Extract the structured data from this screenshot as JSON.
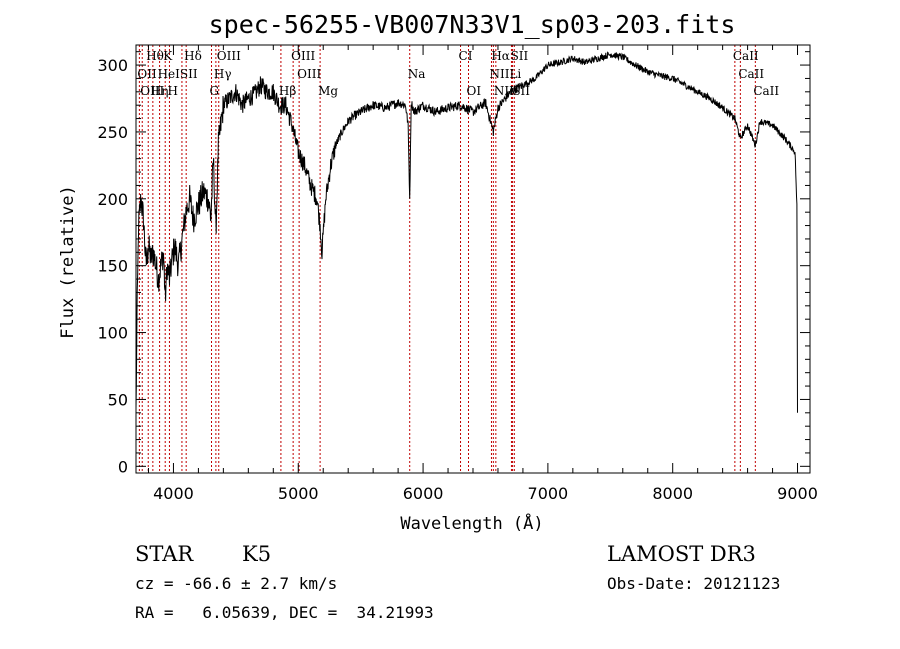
{
  "chart_data": {
    "type": "line",
    "title": "spec-56255-VB007N33V1_sp03-203.fits",
    "xlabel": "Wavelength (Å)",
    "ylabel": "Flux (relative)",
    "xlim": [
      3700,
      9100
    ],
    "ylim": [
      -5,
      315
    ],
    "xticks": [
      4000,
      5000,
      6000,
      7000,
      8000,
      9000
    ],
    "yticks": [
      0,
      50,
      100,
      150,
      200,
      250,
      300
    ],
    "grid": false,
    "series": [
      {
        "name": "flux",
        "x": [
          3700,
          3710,
          3720,
          3740,
          3760,
          3780,
          3800,
          3820,
          3840,
          3860,
          3880,
          3900,
          3920,
          3934,
          3950,
          3968,
          3990,
          4010,
          4040,
          4070,
          4100,
          4130,
          4160,
          4200,
          4240,
          4280,
          4300,
          4320,
          4340,
          4360,
          4380,
          4400,
          4450,
          4500,
          4550,
          4600,
          4650,
          4700,
          4750,
          4800,
          4850,
          4900,
          4950,
          5000,
          5050,
          5100,
          5150,
          5175,
          5190,
          5220,
          5260,
          5300,
          5350,
          5400,
          5450,
          5500,
          5600,
          5700,
          5800,
          5860,
          5880,
          5893,
          5905,
          5930,
          6000,
          6100,
          6200,
          6300,
          6400,
          6500,
          6563,
          6600,
          6700,
          6800,
          6900,
          7000,
          7100,
          7200,
          7300,
          7400,
          7500,
          7600,
          7700,
          7800,
          7900,
          8000,
          8100,
          8200,
          8300,
          8400,
          8498,
          8542,
          8600,
          8662,
          8700,
          8800,
          8900,
          8980,
          8995,
          9000
        ],
        "values": [
          40,
          120,
          180,
          200,
          185,
          150,
          165,
          155,
          160,
          150,
          140,
          150,
          160,
          125,
          150,
          140,
          155,
          165,
          150,
          170,
          190,
          200,
          185,
          195,
          205,
          200,
          185,
          230,
          175,
          240,
          255,
          270,
          275,
          280,
          270,
          275,
          278,
          285,
          280,
          280,
          270,
          270,
          255,
          235,
          225,
          210,
          200,
          180,
          160,
          200,
          225,
          240,
          250,
          258,
          262,
          265,
          270,
          268,
          272,
          270,
          255,
          200,
          272,
          265,
          270,
          265,
          268,
          270,
          265,
          272,
          250,
          268,
          280,
          285,
          290,
          300,
          302,
          305,
          302,
          305,
          308,
          306,
          300,
          295,
          292,
          290,
          285,
          280,
          275,
          268,
          260,
          245,
          255,
          240,
          258,
          255,
          245,
          235,
          195,
          40
        ]
      }
    ],
    "spectral_lines": [
      {
        "label": "Hθ",
        "wavelength": 3798,
        "row": 0
      },
      {
        "label": "K",
        "wavelength": 3934,
        "row": 0
      },
      {
        "label": "Hδ",
        "wavelength": 4102,
        "row": 0
      },
      {
        "label": "OIII",
        "wavelength": 4363,
        "row": 0
      },
      {
        "label": "OIII",
        "wavelength": 4959,
        "row": 0
      },
      {
        "label": "CI",
        "wavelength": 6300,
        "row": 0
      },
      {
        "label": "Hα",
        "wavelength": 6563,
        "row": 0
      },
      {
        "label": "SII",
        "wavelength": 6717,
        "row": 0
      },
      {
        "label": "CaII",
        "wavelength": 8498,
        "row": 0
      },
      {
        "label": "OII",
        "wavelength": 3727,
        "row": 1
      },
      {
        "label": "HeI",
        "wavelength": 3889,
        "row": 1
      },
      {
        "label": "SII",
        "wavelength": 4068,
        "row": 1
      },
      {
        "label": "Hγ",
        "wavelength": 4340,
        "row": 1
      },
      {
        "label": "OIII",
        "wavelength": 5007,
        "row": 1
      },
      {
        "label": "NII",
        "wavelength": 6548,
        "row": 1
      },
      {
        "label": "Li",
        "wavelength": 6708,
        "row": 1
      },
      {
        "label": "CaII",
        "wavelength": 8542,
        "row": 1
      },
      {
        "label": "OIII",
        "wavelength": 3750,
        "row": 2
      },
      {
        "label": "Hη",
        "wavelength": 3835,
        "row": 2
      },
      {
        "label": "H",
        "wavelength": 3968,
        "row": 2
      },
      {
        "label": "G",
        "wavelength": 4305,
        "row": 2
      },
      {
        "label": "Hβ",
        "wavelength": 4861,
        "row": 2
      },
      {
        "label": "Mg",
        "wavelength": 5175,
        "row": 2
      },
      {
        "label": "Na",
        "wavelength": 5893,
        "row": 1
      },
      {
        "label": "OI",
        "wavelength": 6364,
        "row": 2
      },
      {
        "label": "NII",
        "wavelength": 6583,
        "row": 2
      },
      {
        "label": "SII",
        "wavelength": 6731,
        "row": 2
      },
      {
        "label": "CaII",
        "wavelength": 8662,
        "row": 2
      }
    ]
  },
  "info": {
    "object_class": "STAR",
    "subclass": "K5",
    "survey": "LAMOST DR3",
    "cz": "cz = -66.6 ± 2.7 km/s",
    "obs_date": "Obs-Date: 20121123",
    "coords": "RA =   6.05639, DEC =  34.21993"
  }
}
